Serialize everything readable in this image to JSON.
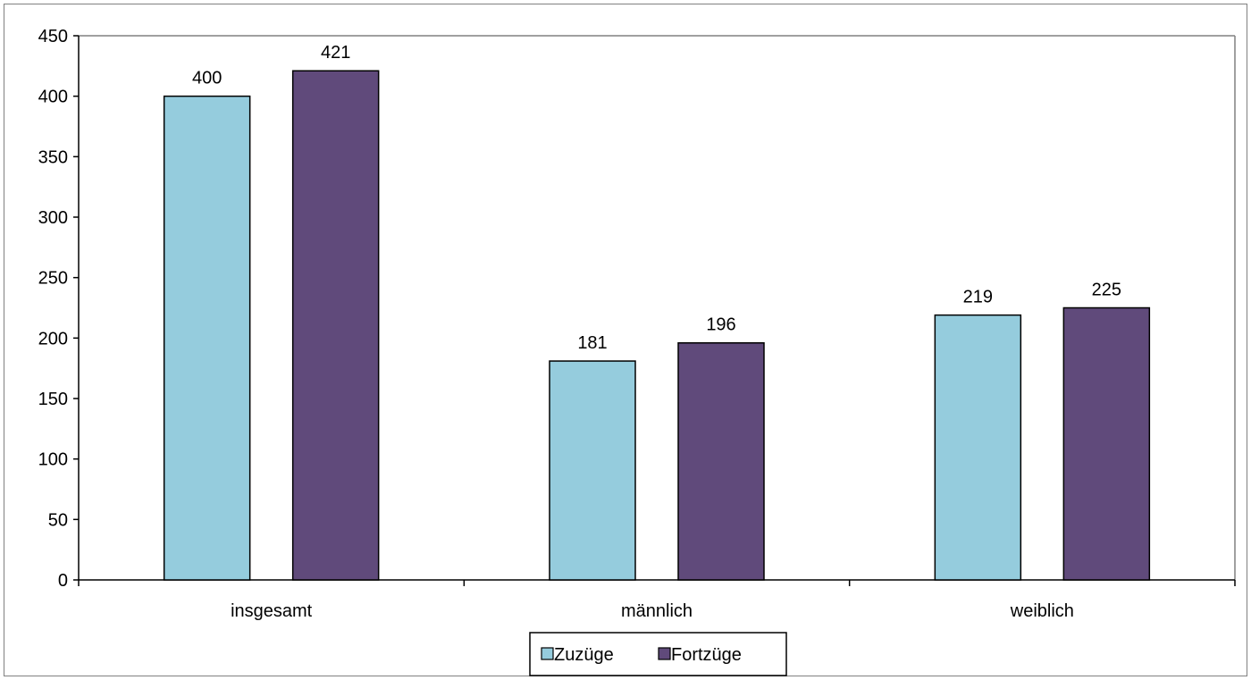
{
  "chart_data": {
    "type": "bar",
    "categories": [
      "insgesamt",
      "männlich",
      "weiblich"
    ],
    "series": [
      {
        "name": "Zuzüge",
        "values": [
          400,
          181,
          219
        ],
        "color": "#95ccdd"
      },
      {
        "name": "Fortzüge",
        "values": [
          421,
          196,
          225
        ],
        "color": "#604a7b"
      }
    ],
    "ylim": [
      0,
      450
    ],
    "yticks": [
      0,
      50,
      100,
      150,
      200,
      250,
      300,
      350,
      400,
      450
    ],
    "grid": false,
    "legend_position": "bottom"
  }
}
